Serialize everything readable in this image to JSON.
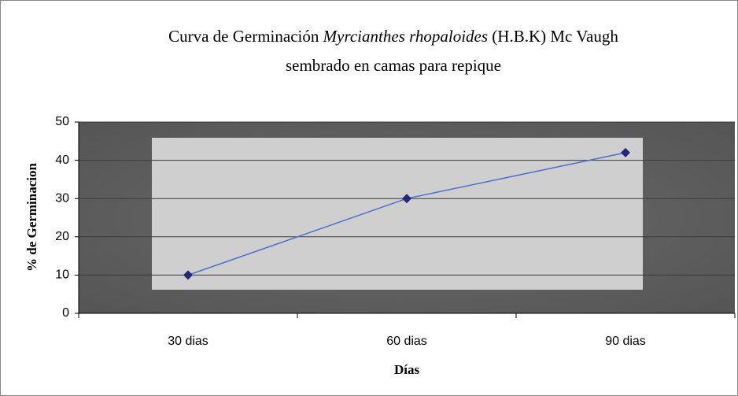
{
  "chart_data": {
    "type": "line",
    "title": [
      "Curva de Germinación",
      "Myrcianthes rhopaloides",
      "(H.B.K) Mc Vaugh"
    ],
    "subtitle": "sembrado en camas para repique",
    "x_label": "Días",
    "y_label": "% de Germinacion",
    "categories": [
      "30 dias",
      "60 dias",
      "90 dias"
    ],
    "series": [
      {
        "name": "Germinacion",
        "color": "#4a6fd0",
        "marker_color": "#1f2a78",
        "values": [
          10,
          30,
          42
        ]
      }
    ],
    "ylim": [
      0,
      50
    ],
    "yticks": [
      0,
      10,
      20,
      30,
      40,
      50
    ],
    "grid": true
  }
}
